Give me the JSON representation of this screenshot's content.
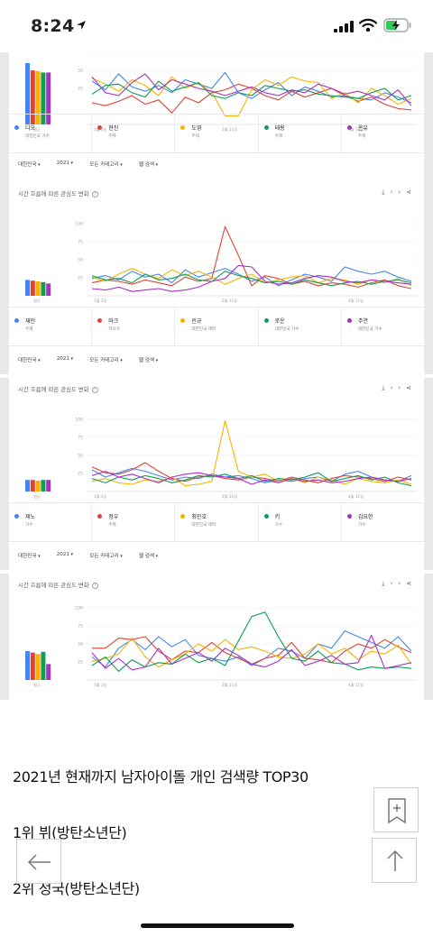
{
  "status_bar": {
    "time": "8:24"
  },
  "series_colors": [
    "#4285f4",
    "#db4437",
    "#f4b400",
    "#0f9d58",
    "#ab30c4"
  ],
  "charts": [
    {
      "title": "",
      "legend": [
        {
          "name": "디오",
          "sub": "대한민국 가수"
        },
        {
          "name": "현진",
          "sub": "주제"
        },
        {
          "name": "도영",
          "sub": "주제"
        },
        {
          "name": "태용",
          "sub": "주제"
        },
        {
          "name": "온유",
          "sub": "주제"
        }
      ],
      "avg_label": "평균",
      "y_ticks": [
        "",
        "50",
        "25"
      ],
      "x_ticks": [
        "1월 3일",
        "2월 21일",
        "4월 11일"
      ],
      "bar_values": [
        85,
        75,
        74,
        72,
        72
      ],
      "chart_data": {
        "type": "line",
        "ylim": [
          0,
          100
        ],
        "series": [
          {
            "values": [
              60,
              48,
              70,
              52,
              46,
              54,
              44,
              62,
              56,
              50,
              72,
              44,
              36,
              48,
              58,
              40,
              52,
              46,
              38,
              40,
              36,
              34,
              44,
              38,
              30
            ]
          },
          {
            "values": [
              30,
              26,
              32,
              40,
              28,
              34,
              16,
              38,
              30,
              44,
              48,
              56,
              50,
              40,
              34,
              46,
              38,
              44,
              50,
              40,
              32,
              38,
              28,
              22,
              20
            ]
          },
          {
            "values": [
              64,
              56,
              46,
              62,
              54,
              40,
              66,
              50,
              58,
              44,
              12,
              12,
              48,
              62,
              54,
              66,
              60,
              58,
              36,
              44,
              30,
              50,
              40,
              28,
              36
            ]
          },
          {
            "values": [
              42,
              54,
              56,
              44,
              38,
              60,
              46,
              52,
              58,
              40,
              36,
              44,
              40,
              54,
              50,
              46,
              48,
              42,
              40,
              38,
              36,
              44,
              50,
              34,
              40
            ]
          },
          {
            "values": [
              66,
              44,
              40,
              58,
              70,
              48,
              62,
              56,
              50,
              46,
              40,
              46,
              52,
              44,
              40,
              48,
              44,
              56,
              50,
              42,
              46,
              40,
              34,
              48,
              26
            ]
          }
        ]
      },
      "filters": [
        "대한민국",
        "2021",
        "모든 카테고리",
        "웹 검색"
      ]
    },
    {
      "title": "시간 흐름에 따른 관심도 변화",
      "legend": [
        {
          "name": "재민",
          "sub": "주제"
        },
        {
          "name": "마크",
          "sub": "작사가"
        },
        {
          "name": "민규",
          "sub": "대한민국 래퍼"
        },
        {
          "name": "로운",
          "sub": "대한민국 가수"
        },
        {
          "name": "주연",
          "sub": "대한민국 가수"
        }
      ],
      "avg_label": "평균",
      "y_ticks": [
        "100",
        "75",
        "50",
        "25"
      ],
      "x_ticks": [
        "1월 3일",
        "2월 21일",
        "4월 11일"
      ],
      "bar_values": [
        22,
        21,
        20,
        19,
        17
      ],
      "chart_data": {
        "type": "line",
        "ylim": [
          0,
          100
        ],
        "series": [
          {
            "values": [
              24,
              28,
              22,
              34,
              26,
              30,
              18,
              36,
              26,
              32,
              38,
              30,
              20,
              26,
              14,
              22,
              30,
              26,
              20,
              40,
              34,
              30,
              34,
              26,
              20
            ]
          },
          {
            "values": [
              18,
              22,
              20,
              16,
              22,
              18,
              14,
              26,
              20,
              24,
              96,
              56,
              14,
              28,
              24,
              16,
              20,
              14,
              18,
              16,
              12,
              18,
              22,
              14,
              10
            ]
          },
          {
            "values": [
              26,
              20,
              30,
              38,
              30,
              24,
              36,
              28,
              34,
              26,
              16,
              24,
              30,
              18,
              22,
              26,
              28,
              18,
              24,
              22,
              16,
              22,
              18,
              24,
              14
            ]
          },
          {
            "values": [
              28,
              22,
              24,
              18,
              30,
              22,
              24,
              30,
              22,
              20,
              34,
              28,
              24,
              18,
              20,
              16,
              22,
              18,
              14,
              18,
              20,
              16,
              20,
              22,
              18
            ]
          },
          {
            "values": [
              10,
              8,
              12,
              6,
              8,
              10,
              6,
              8,
              12,
              20,
              24,
              42,
              40,
              20,
              16,
              18,
              24,
              28,
              26,
              20,
              18,
              22,
              20,
              18,
              16
            ]
          }
        ]
      },
      "filters": [
        "대한민국",
        "2021",
        "모든 카테고리",
        "웹 검색"
      ]
    },
    {
      "title": "시간 흐름에 따른 관심도 변화",
      "legend": [
        {
          "name": "제노",
          "sub": "가수"
        },
        {
          "name": "정우",
          "sub": "주제"
        },
        {
          "name": "최민호",
          "sub": "대한민국 래퍼"
        },
        {
          "name": "키",
          "sub": "가수"
        },
        {
          "name": "김요한",
          "sub": "가수"
        }
      ],
      "avg_label": "평균",
      "y_ticks": [
        "100",
        "75",
        "50",
        "25"
      ],
      "x_ticks": [
        "1월 3일",
        "2월 21일",
        "4월 11일"
      ],
      "bar_values": [
        16,
        16,
        15,
        16,
        16
      ],
      "chart_data": {
        "type": "line",
        "ylim": [
          0,
          100
        ],
        "series": [
          {
            "values": [
              30,
              20,
              26,
              32,
              28,
              22,
              16,
              20,
              18,
              24,
              20,
              22,
              18,
              12,
              16,
              14,
              18,
              20,
              14,
              24,
              28,
              20,
              16,
              14,
              22
            ]
          },
          {
            "values": [
              34,
              26,
              24,
              30,
              40,
              28,
              18,
              14,
              20,
              22,
              18,
              16,
              20,
              18,
              14,
              20,
              16,
              12,
              18,
              22,
              20,
              18,
              14,
              20,
              16
            ]
          },
          {
            "values": [
              14,
              18,
              12,
              10,
              16,
              14,
              20,
              8,
              10,
              14,
              98,
              28,
              20,
              24,
              14,
              18,
              12,
              20,
              16,
              10,
              18,
              14,
              12,
              16,
              10
            ]
          },
          {
            "values": [
              18,
              12,
              20,
              16,
              22,
              18,
              12,
              16,
              22,
              20,
              24,
              18,
              22,
              14,
              18,
              16,
              20,
              26,
              14,
              18,
              22,
              16,
              20,
              12,
              8
            ]
          },
          {
            "values": [
              22,
              28,
              20,
              24,
              18,
              12,
              20,
              24,
              26,
              22,
              20,
              18,
              10,
              16,
              12,
              18,
              14,
              16,
              12,
              14,
              18,
              20,
              16,
              14,
              18
            ]
          }
        ]
      },
      "filters": [
        "대한민국",
        "2021",
        "모든 카테고리",
        "웹 검색"
      ]
    },
    {
      "title": "시간 흐름에 따른 관심도 변화",
      "avg_label": "평균",
      "y_ticks": [
        "100",
        "75",
        "50",
        "25"
      ],
      "x_ticks": [
        "1월 3일",
        "2월 21일",
        "4월 11일"
      ],
      "bar_values": [
        40,
        38,
        36,
        39,
        22
      ],
      "chart_data": {
        "type": "line",
        "ylim": [
          0,
          100
        ],
        "series": [
          {
            "values": [
              32,
              18,
              44,
              56,
              42,
              60,
              46,
              56,
              34,
              30,
              26,
              32,
              20,
              30,
              44,
              40,
              30,
              50,
              44,
              68,
              60,
              52,
              44,
              60,
              40
            ]
          },
          {
            "values": [
              44,
              44,
              58,
              56,
              60,
              40,
              28,
              40,
              38,
              52,
              38,
              30,
              22,
              30,
              34,
              52,
              30,
              28,
              24,
              40,
              50,
              44,
              56,
              46,
              38
            ]
          },
          {
            "values": [
              26,
              30,
              36,
              58,
              32,
              18,
              28,
              36,
              50,
              40,
              56,
              42,
              46,
              40,
              32,
              30,
              36,
              50,
              36,
              44,
              28,
              40,
              36,
              48,
              22
            ]
          },
          {
            "values": [
              20,
              32,
              12,
              28,
              18,
              24,
              22,
              36,
              24,
              30,
              20,
              54,
              88,
              94,
              60,
              30,
              26,
              40,
              24,
              22,
              14,
              18,
              16,
              18,
              16
            ]
          },
          {
            "values": [
              38,
              16,
              30,
              14,
              18,
              44,
              22,
              30,
              38,
              26,
              44,
              34,
              22,
              18,
              26,
              42,
              20,
              26,
              34,
              22,
              24,
              62,
              16,
              20,
              24
            ]
          }
        ]
      },
      "filters": []
    }
  ],
  "article": {
    "heading": "2021년 현재까지 남자아이돌 개인 검색량 TOP30",
    "rank1": "1위 뷔(방탄소년단)",
    "rank2": "2위 정국(방탄소년단)"
  }
}
